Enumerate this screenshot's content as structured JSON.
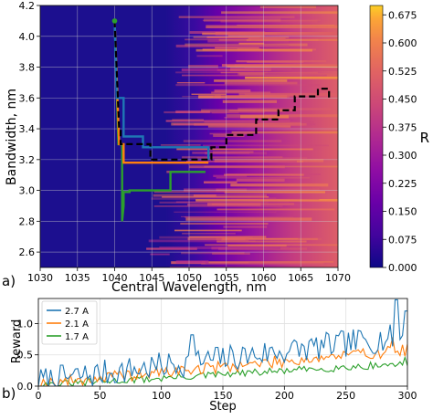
{
  "panel_labels": {
    "a": "a)",
    "b": "b)"
  },
  "colors": {
    "background": "#1c0f8f",
    "blue": "#1f77b4",
    "orange": "#ff7f0e",
    "green": "#2ca02c",
    "black": "#000000",
    "grid": "#cccccc"
  },
  "chart_data": [
    {
      "type": "heatmap",
      "title": "",
      "xlabel": "Central Wavelength, nm",
      "ylabel": "Bandwidth, nm",
      "xlim": [
        1030,
        1070
      ],
      "ylim": [
        2.5,
        4.2
      ],
      "xticks": [
        "1030",
        "1035",
        "1040",
        "1045",
        "1050",
        "1055",
        "1060",
        "1065",
        "1070"
      ],
      "yticks": [
        "2.6",
        "2.8",
        "3.0",
        "3.2",
        "3.4",
        "3.6",
        "3.8",
        "4.0",
        "4.2"
      ],
      "colorbar": {
        "label": "R",
        "colormap": "plasma",
        "min": 0.0,
        "max": 0.7,
        "ticks": [
          "0.000",
          "0.075",
          "0.150",
          "0.225",
          "0.300",
          "0.375",
          "0.450",
          "0.525",
          "0.600",
          "0.675"
        ]
      },
      "grid": true,
      "paths": [
        {
          "color": "blue",
          "style": "solid",
          "points": [
            [
              1040,
              4.1
            ],
            [
              1040.3,
              3.6
            ],
            [
              1041.2,
              3.6
            ],
            [
              1041.2,
              3.35
            ],
            [
              1043.8,
              3.35
            ],
            [
              1043.8,
              3.28
            ],
            [
              1052.6,
              3.28
            ],
            [
              1052.6,
              3.2
            ]
          ]
        },
        {
          "color": "orange",
          "style": "solid",
          "points": [
            [
              1040,
              4.1
            ],
            [
              1040.6,
              3.3
            ],
            [
              1041.2,
              3.3
            ],
            [
              1041.2,
              3.18
            ],
            [
              1044.3,
              3.18
            ],
            [
              1044.3,
              3.18
            ],
            [
              1052.6,
              3.18
            ]
          ]
        },
        {
          "color": "green",
          "style": "solid",
          "points": [
            [
              1040,
              4.1
            ],
            [
              1040.5,
              3.3
            ],
            [
              1041.0,
              3.3
            ],
            [
              1041.0,
              2.8
            ],
            [
              1041.2,
              2.9
            ],
            [
              1041.2,
              2.99
            ],
            [
              1042.0,
              2.99
            ],
            [
              1042.0,
              3.0
            ],
            [
              1047.5,
              3.0
            ],
            [
              1047.5,
              3.12
            ],
            [
              1052.2,
              3.12
            ]
          ]
        },
        {
          "color": "black",
          "style": "dashed",
          "points": [
            [
              1040.0,
              4.1
            ],
            [
              1040.6,
              3.4
            ],
            [
              1040.8,
              3.4
            ],
            [
              1040.8,
              3.3
            ],
            [
              1044.8,
              3.3
            ],
            [
              1044.8,
              3.2
            ],
            [
              1050.5,
              3.2
            ],
            [
              1053.0,
              3.2
            ],
            [
              1053.0,
              3.28
            ],
            [
              1055.0,
              3.28
            ],
            [
              1055.0,
              3.36
            ],
            [
              1059.0,
              3.36
            ],
            [
              1059.0,
              3.46
            ],
            [
              1062.0,
              3.46
            ],
            [
              1062.0,
              3.52
            ],
            [
              1064.2,
              3.52
            ],
            [
              1064.2,
              3.61
            ],
            [
              1067.3,
              3.61
            ],
            [
              1067.3,
              3.66
            ],
            [
              1068.8,
              3.66
            ],
            [
              1068.8,
              3.6
            ]
          ]
        }
      ]
    },
    {
      "type": "line",
      "title": "",
      "xlabel": "Step",
      "ylabel": "Reward",
      "xlim": [
        0,
        300
      ],
      "ylim": [
        0,
        1.4
      ],
      "xticks": [
        "0",
        "50",
        "100",
        "150",
        "200",
        "250",
        "300"
      ],
      "yticks": [
        "0.0",
        "0.5",
        "1.0"
      ],
      "legend_position": "top-left",
      "series": [
        {
          "name": "2.7 A",
          "color": "blue",
          "start": 0.08,
          "end": 0.8,
          "amplitude": 0.22,
          "peaks": [
            [
              125,
              0.82
            ],
            [
              145,
              0.62
            ],
            [
              262,
              0.88
            ],
            [
              291,
              1.38
            ],
            [
              299,
              1.2
            ]
          ]
        },
        {
          "name": "2.1 A",
          "color": "orange",
          "start": 0.04,
          "end": 0.58,
          "amplitude": 0.1,
          "peaks": [
            [
              288,
              0.78
            ]
          ]
        },
        {
          "name": "1.7 A",
          "color": "green",
          "start": 0.01,
          "end": 0.36,
          "amplitude": 0.06,
          "peaks": [
            [
              298,
              0.46
            ]
          ]
        }
      ]
    }
  ]
}
